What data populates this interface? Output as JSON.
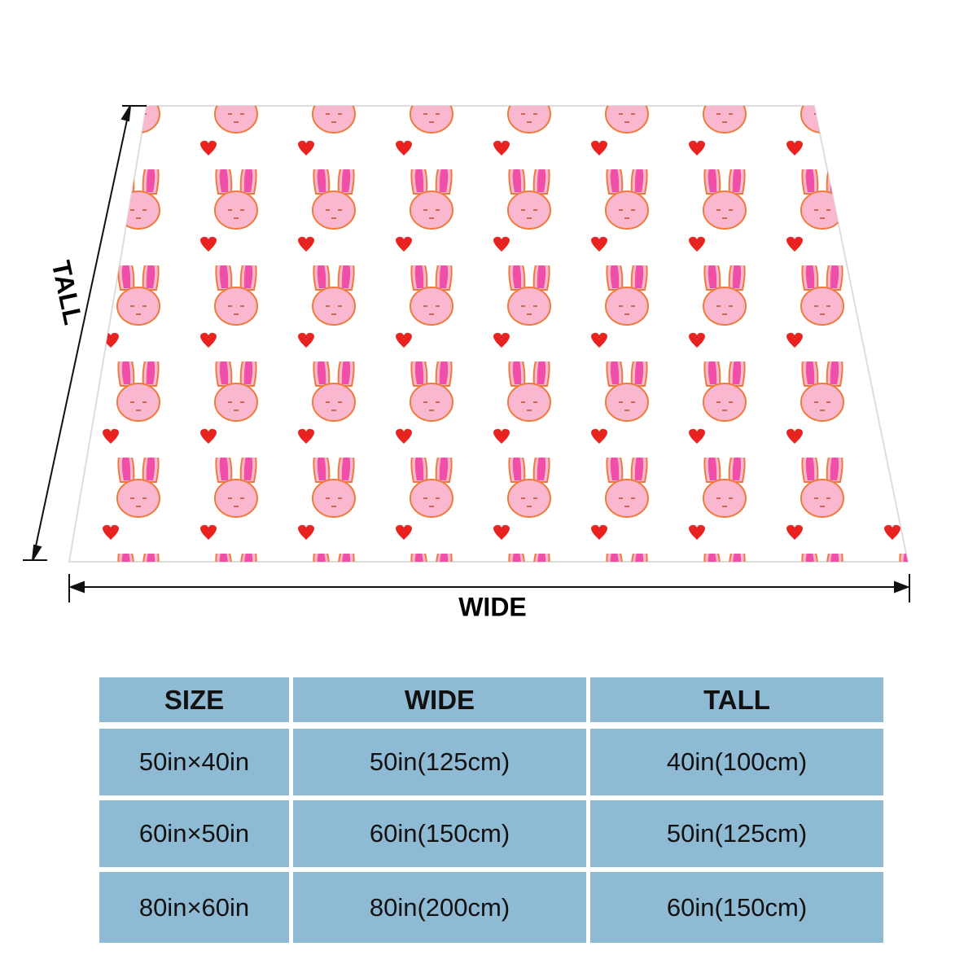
{
  "dimensions": {
    "tall_label": "TALL",
    "wide_label": "WIDE"
  },
  "table": {
    "header": [
      "SIZE",
      "WIDE",
      "TALL"
    ],
    "rows": [
      [
        "50in×40in",
        "50in(125cm)",
        "40in(100cm)"
      ],
      [
        "60in×50in",
        "60in(150cm)",
        "50in(125cm)"
      ],
      [
        "80in×60in",
        "80in(200cm)",
        "60in(150cm)"
      ]
    ]
  }
}
